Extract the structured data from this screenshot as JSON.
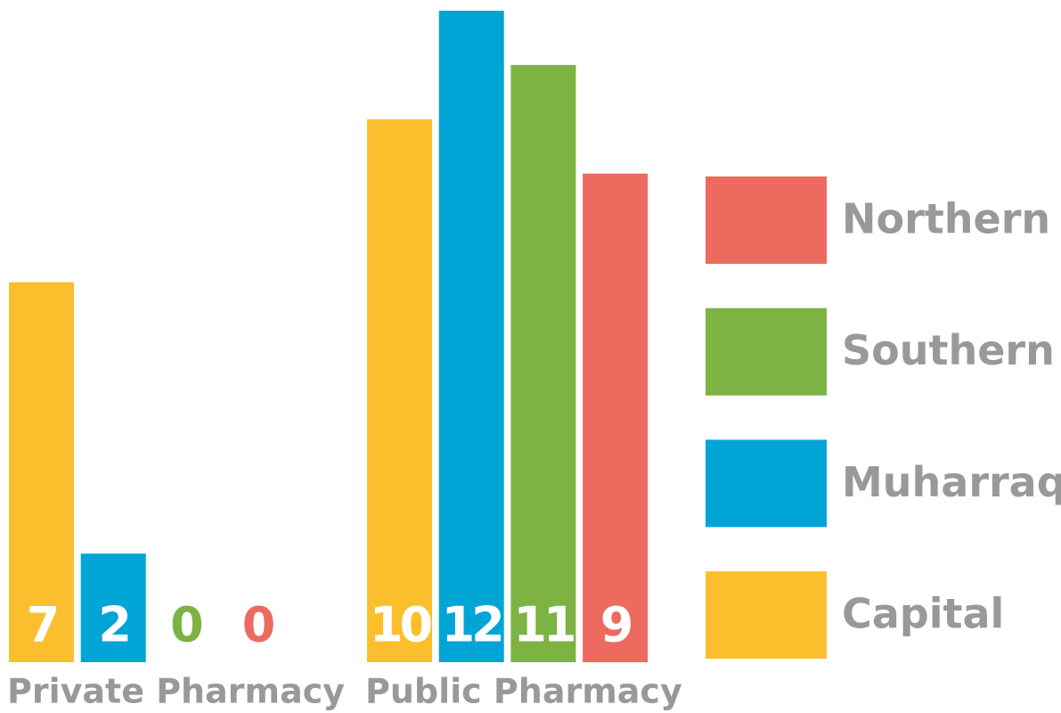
{
  "chart_data": {
    "type": "bar",
    "categories": [
      "Private Pharmacy",
      "Public Pharmacy"
    ],
    "series": [
      {
        "name": "Capital",
        "color": "#fbbf2e",
        "values": [
          7,
          10
        ]
      },
      {
        "name": "Muharraq",
        "color": "#00a5d6",
        "values": [
          2,
          12
        ]
      },
      {
        "name": "Southern",
        "color": "#7cb342",
        "values": [
          0,
          11
        ]
      },
      {
        "name": "Northern",
        "color": "#ec6b5e",
        "values": [
          0,
          9
        ]
      }
    ],
    "ylim": [
      0,
      12
    ]
  }
}
